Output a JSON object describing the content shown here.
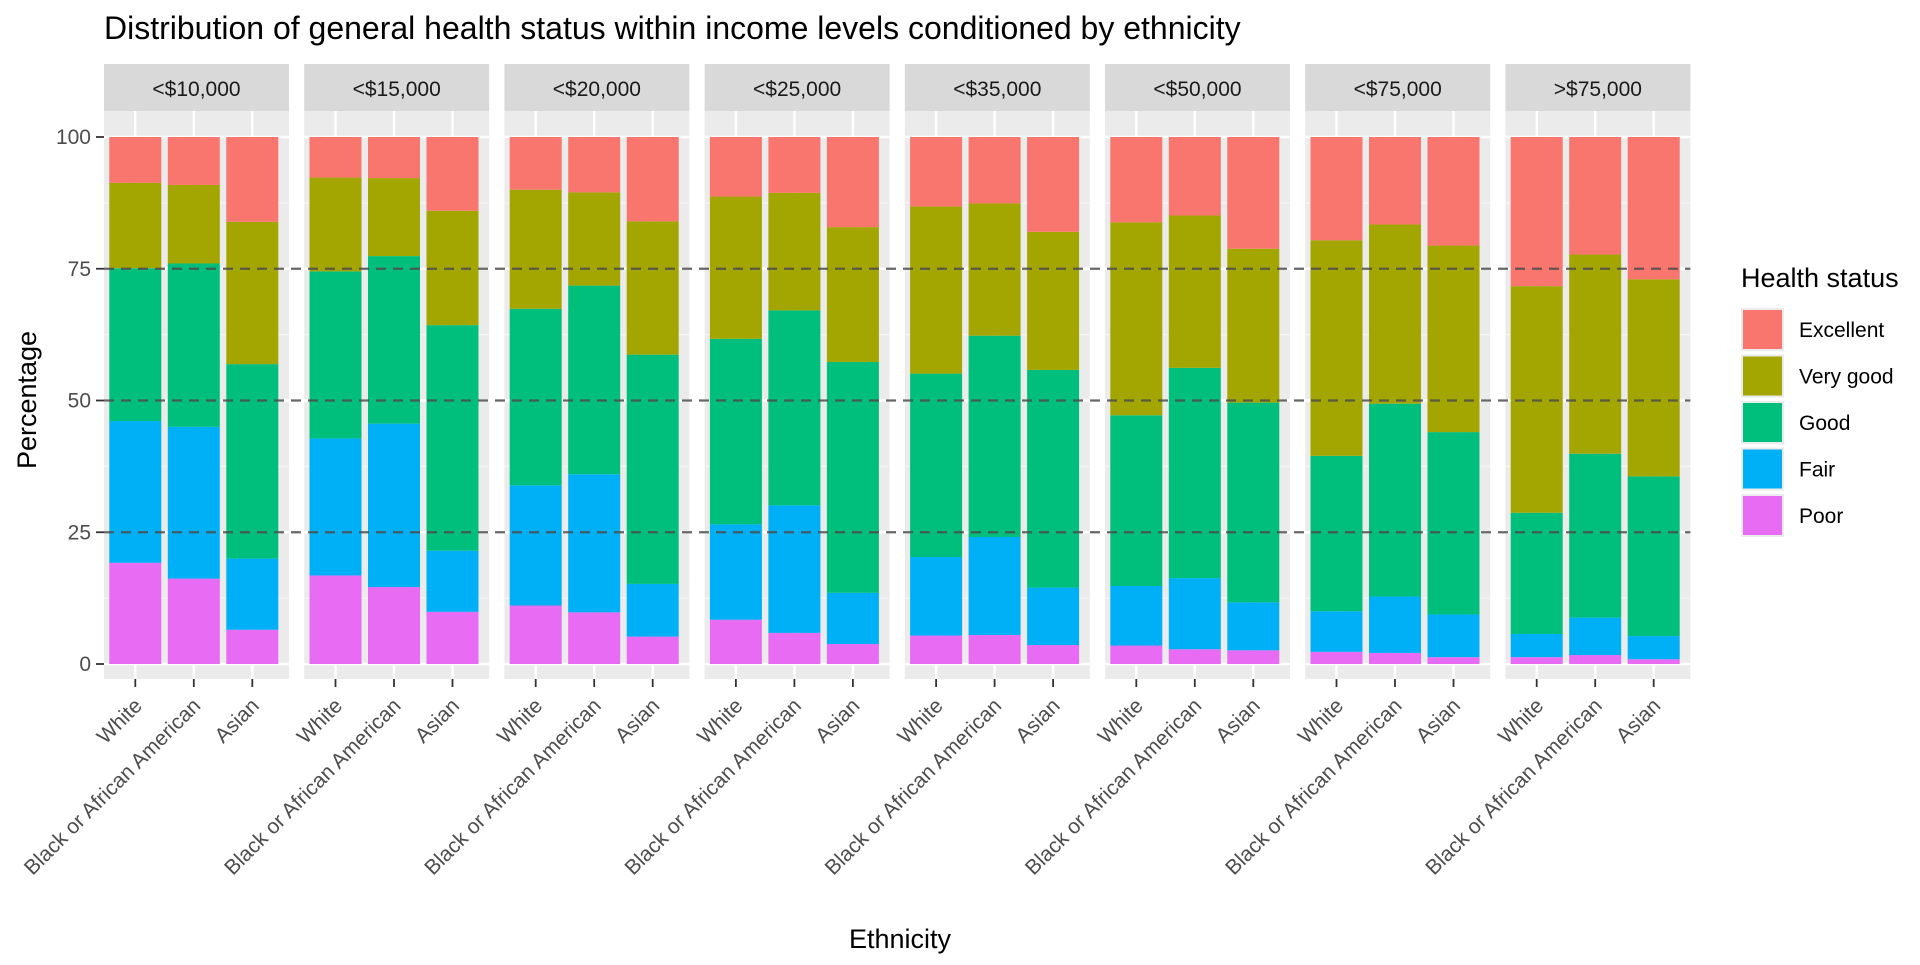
{
  "chart_data": {
    "type": "bar",
    "stacked": true,
    "faceted": true,
    "title": "Distribution of general health status within income levels conditioned by ethnicity",
    "xlabel": "Ethnicity",
    "ylabel": "Percentage",
    "ylim": [
      0,
      100
    ],
    "yticks": [
      0,
      25,
      50,
      75,
      100
    ],
    "reference_lines": [
      25,
      50,
      75
    ],
    "categories": [
      "White",
      "Black or African American",
      "Asian"
    ],
    "legend": {
      "title": "Health status",
      "position": "right",
      "entries": [
        "Excellent",
        "Very good",
        "Good",
        "Fair",
        "Poor"
      ]
    },
    "colors": {
      "Poor": "#E76BF3",
      "Fair": "#00B0F6",
      "Good": "#00BF7D",
      "Very good": "#A3A500",
      "Excellent": "#F8766D"
    },
    "stack_order_bottom_to_top": [
      "Poor",
      "Fair",
      "Good",
      "Very good",
      "Excellent"
    ],
    "panels": [
      {
        "facet": "<$10,000",
        "bars": [
          {
            "category": "White",
            "Poor": 19.2,
            "Fair": 26.9,
            "Good": 29.0,
            "Very good": 16.2,
            "Excellent": 8.7
          },
          {
            "category": "Black or African American",
            "Poor": 16.2,
            "Fair": 28.8,
            "Good": 31.0,
            "Very good": 14.9,
            "Excellent": 9.1
          },
          {
            "category": "Asian",
            "Poor": 6.5,
            "Fair": 13.5,
            "Good": 36.9,
            "Very good": 27.0,
            "Excellent": 16.1
          }
        ]
      },
      {
        "facet": "<$15,000",
        "bars": [
          {
            "category": "White",
            "Poor": 16.8,
            "Fair": 26.0,
            "Good": 31.7,
            "Very good": 17.8,
            "Excellent": 7.7
          },
          {
            "category": "Black or African American",
            "Poor": 14.6,
            "Fair": 31.0,
            "Good": 31.8,
            "Very good": 14.8,
            "Excellent": 7.8
          },
          {
            "category": "Asian",
            "Poor": 9.9,
            "Fair": 11.6,
            "Good": 42.8,
            "Very good": 21.7,
            "Excellent": 14.0
          }
        ]
      },
      {
        "facet": "<$20,000",
        "bars": [
          {
            "category": "White",
            "Poor": 11.1,
            "Fair": 22.8,
            "Good": 33.5,
            "Very good": 22.6,
            "Excellent": 10.0
          },
          {
            "category": "Black or African American",
            "Poor": 9.8,
            "Fair": 26.2,
            "Good": 35.8,
            "Very good": 17.7,
            "Excellent": 10.5
          },
          {
            "category": "Asian",
            "Poor": 5.2,
            "Fair": 10.0,
            "Good": 43.5,
            "Very good": 25.3,
            "Excellent": 16.0
          }
        ]
      },
      {
        "facet": "<$25,000",
        "bars": [
          {
            "category": "White",
            "Poor": 8.4,
            "Fair": 18.1,
            "Good": 35.2,
            "Very good": 27.0,
            "Excellent": 11.3
          },
          {
            "category": "Black or African American",
            "Poor": 5.9,
            "Fair": 24.2,
            "Good": 37.0,
            "Very good": 22.3,
            "Excellent": 10.6
          },
          {
            "category": "Asian",
            "Poor": 3.8,
            "Fair": 9.7,
            "Good": 43.8,
            "Very good": 25.6,
            "Excellent": 17.1
          }
        ]
      },
      {
        "facet": "<$35,000",
        "bars": [
          {
            "category": "White",
            "Poor": 5.4,
            "Fair": 14.9,
            "Good": 34.8,
            "Very good": 31.7,
            "Excellent": 13.2
          },
          {
            "category": "Black or African American",
            "Poor": 5.5,
            "Fair": 18.6,
            "Good": 38.2,
            "Very good": 25.1,
            "Excellent": 12.6
          },
          {
            "category": "Asian",
            "Poor": 3.6,
            "Fair": 10.9,
            "Good": 41.3,
            "Very good": 26.2,
            "Excellent": 18.0
          }
        ]
      },
      {
        "facet": "<$50,000",
        "bars": [
          {
            "category": "White",
            "Poor": 3.5,
            "Fair": 11.3,
            "Good": 32.4,
            "Very good": 36.6,
            "Excellent": 16.2
          },
          {
            "category": "Black or African American",
            "Poor": 2.8,
            "Fair": 13.5,
            "Good": 39.9,
            "Very good": 28.9,
            "Excellent": 14.9
          },
          {
            "category": "Asian",
            "Poor": 2.6,
            "Fair": 9.1,
            "Good": 37.9,
            "Very good": 29.2,
            "Excellent": 21.2
          }
        ]
      },
      {
        "facet": "<$75,000",
        "bars": [
          {
            "category": "White",
            "Poor": 2.3,
            "Fair": 7.7,
            "Good": 29.5,
            "Very good": 40.9,
            "Excellent": 19.6
          },
          {
            "category": "Black or African American",
            "Poor": 2.1,
            "Fair": 10.7,
            "Good": 36.6,
            "Very good": 34.0,
            "Excellent": 16.6
          },
          {
            "category": "Asian",
            "Poor": 1.3,
            "Fair": 8.1,
            "Good": 34.6,
            "Very good": 35.4,
            "Excellent": 20.6
          }
        ]
      },
      {
        "facet": ">$75,000",
        "bars": [
          {
            "category": "White",
            "Poor": 1.3,
            "Fair": 4.4,
            "Good": 23.0,
            "Very good": 43.0,
            "Excellent": 28.3
          },
          {
            "category": "Black or African American",
            "Poor": 1.7,
            "Fair": 7.1,
            "Good": 31.1,
            "Very good": 37.8,
            "Excellent": 22.3
          },
          {
            "category": "Asian",
            "Poor": 0.9,
            "Fair": 4.4,
            "Good": 30.3,
            "Very good": 37.4,
            "Excellent": 27.0
          }
        ]
      }
    ]
  }
}
